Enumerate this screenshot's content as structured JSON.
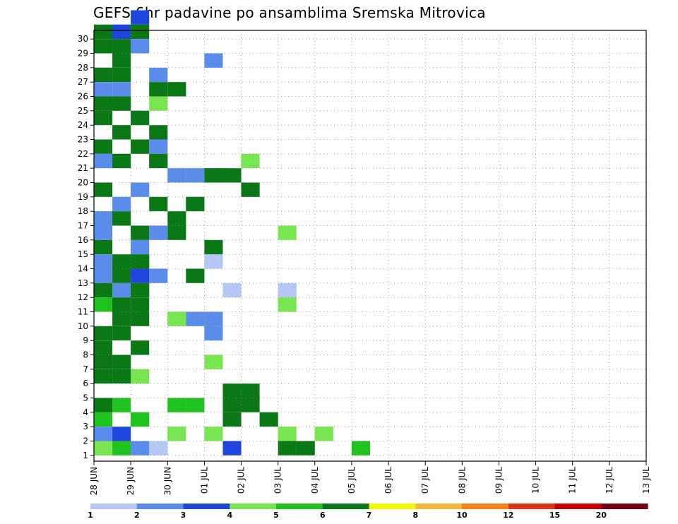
{
  "chart_data": {
    "type": "heatmap",
    "title": "GEFS 6hr padavine po ansamblima Sremska Mitrovica",
    "y_members": [
      1,
      2,
      3,
      4,
      5,
      6,
      7,
      8,
      9,
      10,
      11,
      12,
      13,
      14,
      15,
      16,
      17,
      18,
      19,
      20,
      21,
      22,
      23,
      24,
      25,
      26,
      27,
      28,
      29,
      30
    ],
    "x_labels": [
      "28 JUN",
      "29 JUN",
      "30 JUN",
      "01 JUL",
      "02 JUL",
      "03 JUL",
      "04 JUL",
      "05 JUL",
      "06 JUL",
      "07 JUL",
      "08 JUL",
      "09 JUL",
      "10 JUL",
      "11 JUL",
      "12 JUL",
      "13 JUL"
    ],
    "time_step": "6hr",
    "legend": {
      "position": "bottom",
      "labels": [
        "1",
        "2",
        "3",
        "4",
        "5",
        "6",
        "7",
        "8",
        "10",
        "12",
        "15",
        "20"
      ],
      "colors": [
        "#b4c8f5",
        "#5a8ceb",
        "#1e46dc",
        "#78e650",
        "#1ec31e",
        "#0a7814",
        "#f5f50a",
        "#fab43c",
        "#fa8214",
        "#e63214",
        "#c80000",
        "#780014"
      ]
    },
    "grid": true,
    "cells": [
      [
        1,
        1,
        4
      ],
      [
        1,
        2,
        1
      ],
      [
        1,
        9,
        7
      ],
      [
        1,
        10,
        5
      ],
      [
        1,
        10,
        3
      ],
      [
        1,
        11,
        2
      ],
      [
        1,
        12,
        8
      ],
      [
        1,
        12,
        11
      ],
      [
        1,
        13,
        1
      ],
      [
        1,
        13,
        3
      ],
      [
        1,
        14,
        7
      ],
      [
        1,
        14,
        3
      ],
      [
        2,
        1,
        3
      ],
      [
        2,
        2,
        1
      ],
      [
        2,
        9,
        7
      ],
      [
        2,
        10,
        7
      ],
      [
        2,
        10,
        6
      ],
      [
        2,
        12,
        2
      ],
      [
        2,
        12,
        3
      ],
      [
        2,
        13,
        1
      ],
      [
        2,
        13,
        4
      ],
      [
        2,
        14,
        1
      ],
      [
        2,
        14,
        3
      ],
      [
        2,
        15,
        3
      ],
      [
        2,
        16,
        1
      ],
      [
        2,
        16,
        4
      ],
      [
        2,
        17,
        1
      ],
      [
        2,
        17,
        2
      ],
      [
        2,
        18,
        6
      ],
      [
        2,
        18,
        2
      ],
      [
        2,
        19,
        9
      ],
      [
        2,
        19,
        3
      ],
      [
        2,
        20,
        5
      ],
      [
        2,
        20,
        6
      ],
      [
        2,
        20,
        7
      ],
      [
        2,
        21,
        1
      ],
      [
        2,
        21,
        2
      ],
      [
        2,
        21,
        4
      ],
      [
        2,
        22,
        4
      ],
      [
        2,
        23,
        2
      ],
      [
        2,
        24,
        1
      ],
      [
        2,
        24,
        3
      ],
      [
        2,
        25,
        1
      ],
      [
        2,
        26,
        1
      ],
      [
        2,
        26,
        2
      ],
      [
        2,
        27,
        1
      ],
      [
        2,
        27,
        4
      ],
      [
        2,
        28,
        7
      ],
      [
        2,
        29,
        2
      ],
      [
        2,
        29,
        3
      ],
      [
        2,
        30,
        1
      ],
      [
        2,
        30,
        2
      ],
      [
        3,
        1,
        8
      ],
      [
        3,
        2,
        2
      ],
      [
        3,
        7,
        2
      ],
      [
        3,
        13,
        3
      ],
      [
        3,
        25,
        2
      ],
      [
        3,
        30,
        2
      ],
      [
        3,
        31,
        3
      ],
      [
        4,
        1,
        1
      ],
      [
        4,
        2,
        5
      ],
      [
        4,
        2,
        7
      ],
      [
        4,
        2,
        11
      ],
      [
        4,
        2,
        13
      ],
      [
        4,
        3,
        3
      ],
      [
        4,
        3,
        10
      ],
      [
        4,
        4,
        1
      ],
      [
        4,
        6,
        1
      ],
      [
        4,
        6,
        3
      ],
      [
        4,
        7,
        7
      ],
      [
        4,
        7,
        2
      ],
      [
        4,
        10,
        5
      ],
      [
        4,
        11,
        2
      ],
      [
        4,
        11,
        11
      ],
      [
        4,
        12,
        1
      ],
      [
        4,
        15,
        1
      ],
      [
        4,
        16,
        11
      ],
      [
        4,
        21,
        9
      ],
      [
        4,
        25,
        4
      ],
      [
        5,
        1,
        2
      ],
      [
        5,
        1,
        15
      ],
      [
        5,
        3,
        1
      ],
      [
        5,
        3,
        3
      ],
      [
        5,
        4,
        2
      ],
      [
        5,
        4,
        5
      ],
      [
        5,
        4,
        6
      ],
      [
        5,
        11,
        1
      ],
      [
        5,
        12,
        3
      ],
      [
        6,
        1,
        11
      ],
      [
        6,
        1,
        12
      ],
      [
        6,
        3,
        8
      ],
      [
        6,
        3,
        10
      ],
      [
        6,
        4,
        1
      ],
      [
        6,
        4,
        8
      ],
      [
        6,
        4,
        9
      ],
      [
        6,
        5,
        8
      ],
      [
        6,
        5,
        9
      ],
      [
        6,
        6,
        1
      ],
      [
        6,
        6,
        2
      ],
      [
        6,
        7,
        1
      ],
      [
        6,
        7,
        2
      ],
      [
        6,
        8,
        1
      ],
      [
        6,
        8,
        3
      ],
      [
        6,
        9,
        1
      ],
      [
        6,
        9,
        2
      ],
      [
        6,
        10,
        2
      ],
      [
        6,
        10,
        3
      ],
      [
        6,
        11,
        2
      ],
      [
        6,
        11,
        3
      ],
      [
        6,
        12,
        3
      ],
      [
        6,
        12,
        1
      ],
      [
        6,
        13,
        6
      ],
      [
        6,
        13,
        2
      ],
      [
        6,
        14,
        2
      ],
      [
        6,
        14,
        3
      ],
      [
        6,
        15,
        7
      ],
      [
        6,
        15,
        1
      ],
      [
        6,
        16,
        3
      ],
      [
        6,
        16,
        5
      ],
      [
        6,
        17,
        2
      ],
      [
        6,
        17,
        5
      ],
      [
        6,
        18,
        4
      ],
      [
        6,
        18,
        6
      ],
      [
        6,
        19,
        1
      ],
      [
        6,
        19,
        9
      ],
      [
        6,
        20,
        7
      ],
      [
        6,
        20,
        8
      ],
      [
        6,
        21,
        4
      ],
      [
        6,
        21,
        2
      ],
      [
        6,
        22,
        1
      ],
      [
        6,
        22,
        3
      ],
      [
        6,
        23,
        2
      ],
      [
        6,
        23,
        4
      ],
      [
        6,
        24,
        1
      ],
      [
        6,
        24,
        3
      ],
      [
        6,
        25,
        1
      ],
      [
        6,
        25,
        2
      ],
      [
        6,
        26,
        4
      ],
      [
        6,
        26,
        5
      ],
      [
        6,
        27,
        1
      ],
      [
        6,
        27,
        2
      ],
      [
        6,
        28,
        2
      ],
      [
        6,
        29,
        1
      ],
      [
        6,
        29,
        2
      ],
      [
        6,
        30,
        1
      ],
      [
        6,
        30,
        3
      ]
    ]
  }
}
